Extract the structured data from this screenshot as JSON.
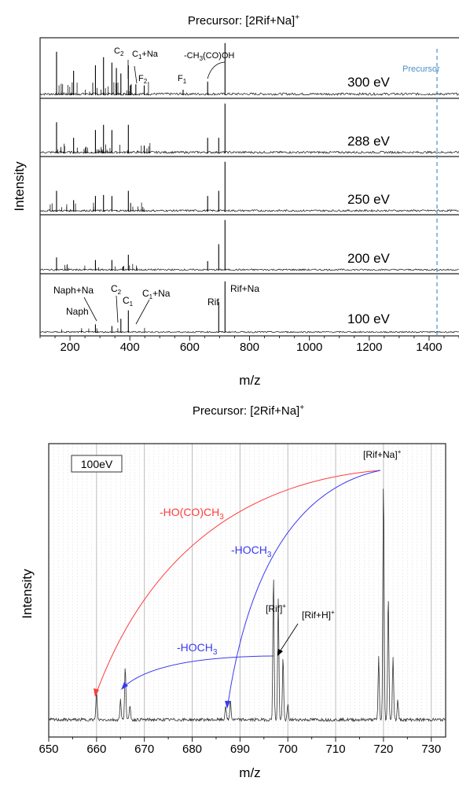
{
  "chart_data": [
    {
      "type": "line",
      "title_main": "Precursor: [2Rif+Na]",
      "title_sup": "+",
      "xlabel": "m/z",
      "ylabel": "Intensity",
      "xlim": [
        100,
        1500
      ],
      "x_ticks": [
        "200",
        "400",
        "600",
        "800",
        "1000",
        "1200",
        "1400"
      ],
      "precursor_label": "Precursor",
      "precursor_mz": 1419,
      "panels": [
        {
          "label": "300 eV",
          "peaks": [
            [
              155,
              0.8
            ],
            [
              212,
              0.45
            ],
            [
              285,
              0.55
            ],
            [
              312,
              0.7
            ],
            [
              340,
              0.6
            ],
            [
              355,
              0.5
            ],
            [
              370,
              0.4
            ],
            [
              395,
              0.55
            ],
            [
              420,
              0.2
            ],
            [
              448,
              0.18
            ],
            [
              578,
              0.1
            ],
            [
              660,
              0.25
            ],
            [
              718,
              0.96
            ]
          ]
        },
        {
          "label": "288 eV",
          "peaks": [
            [
              155,
              0.6
            ],
            [
              212,
              0.3
            ],
            [
              285,
              0.45
            ],
            [
              312,
              0.55
            ],
            [
              340,
              0.45
            ],
            [
              395,
              0.55
            ],
            [
              448,
              0.15
            ],
            [
              660,
              0.3
            ],
            [
              697,
              0.3
            ],
            [
              718,
              0.96
            ]
          ]
        },
        {
          "label": "250 eV",
          "peaks": [
            [
              155,
              0.4
            ],
            [
              212,
              0.22
            ],
            [
              285,
              0.3
            ],
            [
              312,
              0.32
            ],
            [
              340,
              0.3
            ],
            [
              395,
              0.4
            ],
            [
              660,
              0.3
            ],
            [
              697,
              0.4
            ],
            [
              718,
              0.96
            ]
          ]
        },
        {
          "label": "200 eV",
          "peaks": [
            [
              155,
              0.25
            ],
            [
              285,
              0.2
            ],
            [
              340,
              0.2
            ],
            [
              395,
              0.3
            ],
            [
              660,
              0.18
            ],
            [
              697,
              0.5
            ],
            [
              718,
              0.96
            ]
          ]
        },
        {
          "label": "100 eV",
          "peaks": [
            [
              285,
              0.15
            ],
            [
              340,
              0.12
            ],
            [
              370,
              0.25
            ],
            [
              395,
              0.4
            ],
            [
              697,
              0.55
            ],
            [
              718,
              0.92
            ]
          ]
        }
      ],
      "annotations_300": [
        "C2",
        "C1+Na",
        "F2",
        "F1",
        "-CH3(CO)OH"
      ],
      "annotations_100": [
        "Naph+Na",
        "Naph",
        "C2",
        "C1",
        "C1+Na",
        "Rif",
        "Rif+Na"
      ]
    },
    {
      "type": "line",
      "title_main": "Precursor: [2Rif+Na]",
      "title_sup": "+",
      "xlabel": "m/z",
      "ylabel": "Intensity",
      "xlim": [
        650,
        733
      ],
      "x_ticks": [
        "650",
        "660",
        "670",
        "680",
        "690",
        "700",
        "710",
        "720",
        "730"
      ],
      "legend": "100eV",
      "peaks": [
        [
          660,
          0.12
        ],
        [
          665,
          0.08
        ],
        [
          666,
          0.22
        ],
        [
          667,
          0.06
        ],
        [
          687,
          0.06
        ],
        [
          688,
          0.08
        ],
        [
          697,
          0.58
        ],
        [
          698,
          0.48
        ],
        [
          699,
          0.25
        ],
        [
          700,
          0.06
        ],
        [
          719,
          0.25
        ],
        [
          720,
          0.96
        ],
        [
          721,
          0.5
        ],
        [
          722,
          0.25
        ],
        [
          723,
          0.08
        ]
      ],
      "peak_labels": {
        "rif_na": "[Rif+Na]",
        "rif": "[Rif]",
        "rif_h": "[Rif+H]",
        "sup": "+"
      },
      "loss_labels": {
        "acetic": "-HO(CO)CH",
        "acetic_sub": "3",
        "methanol": "-HOCH",
        "methanol_sub": "3"
      },
      "colors": {
        "red": "#ff3b3b",
        "blue": "#3a3af0",
        "precursor_line": "#4a90c8"
      }
    }
  ]
}
